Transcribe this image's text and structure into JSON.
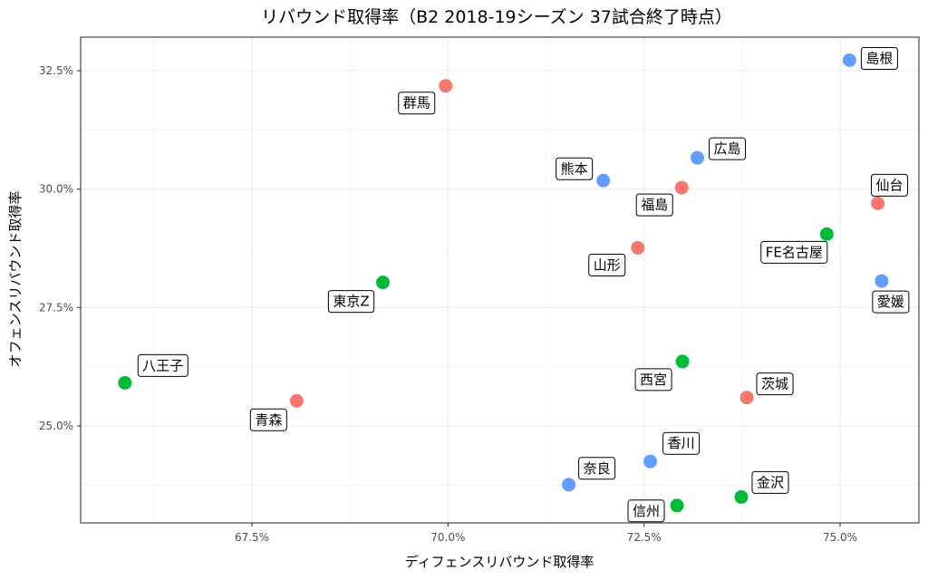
{
  "chart_data": {
    "type": "scatter",
    "title": "リバウンド取得率（B2 2018-19シーズン 37試合終了時点）",
    "xlabel": "ディフェンスリバウンド取得率",
    "ylabel": "オフェンスリバウンド取得率",
    "x_ticks": [
      "67.5%",
      "70.0%",
      "72.5%",
      "75.0%"
    ],
    "y_ticks": [
      "25.0%",
      "27.5%",
      "30.0%",
      "32.5%"
    ],
    "x_tick_values": [
      67.5,
      70.0,
      72.5,
      75.0
    ],
    "y_tick_values": [
      25.0,
      27.5,
      30.0,
      32.5
    ],
    "xlim": [
      65.0,
      80.0
    ],
    "ylim": [
      22.0,
      35.0
    ],
    "grid": true,
    "colors": {
      "red": "#f8766d",
      "green": "#00ba38",
      "blue": "#619cff"
    },
    "points": [
      {
        "name": "島根",
        "x": 75.12,
        "y": 32.72,
        "color": "blue"
      },
      {
        "name": "群馬",
        "x": 69.97,
        "y": 32.18,
        "color": "red"
      },
      {
        "name": "広島",
        "x": 73.18,
        "y": 30.66,
        "color": "blue"
      },
      {
        "name": "熊本",
        "x": 71.98,
        "y": 30.18,
        "color": "blue"
      },
      {
        "name": "福島",
        "x": 72.98,
        "y": 30.03,
        "color": "red"
      },
      {
        "name": "仙台",
        "x": 75.48,
        "y": 29.7,
        "color": "red"
      },
      {
        "name": "FE名古屋",
        "x": 74.83,
        "y": 29.05,
        "color": "green"
      },
      {
        "name": "山形",
        "x": 72.42,
        "y": 28.76,
        "color": "red"
      },
      {
        "name": "東京Z",
        "x": 69.17,
        "y": 28.03,
        "color": "green"
      },
      {
        "name": "愛媛",
        "x": 75.53,
        "y": 28.06,
        "color": "blue"
      },
      {
        "name": "西宮",
        "x": 72.99,
        "y": 26.36,
        "color": "green"
      },
      {
        "name": "八王子",
        "x": 65.88,
        "y": 25.91,
        "color": "green"
      },
      {
        "name": "茨城",
        "x": 73.81,
        "y": 25.6,
        "color": "red"
      },
      {
        "name": "青森",
        "x": 68.07,
        "y": 25.53,
        "color": "red"
      },
      {
        "name": "香川",
        "x": 72.58,
        "y": 24.25,
        "color": "blue"
      },
      {
        "name": "奈良",
        "x": 71.54,
        "y": 23.76,
        "color": "blue"
      },
      {
        "name": "金沢",
        "x": 73.74,
        "y": 23.5,
        "color": "green"
      },
      {
        "name": "信州",
        "x": 72.92,
        "y": 23.32,
        "color": "green"
      }
    ]
  }
}
